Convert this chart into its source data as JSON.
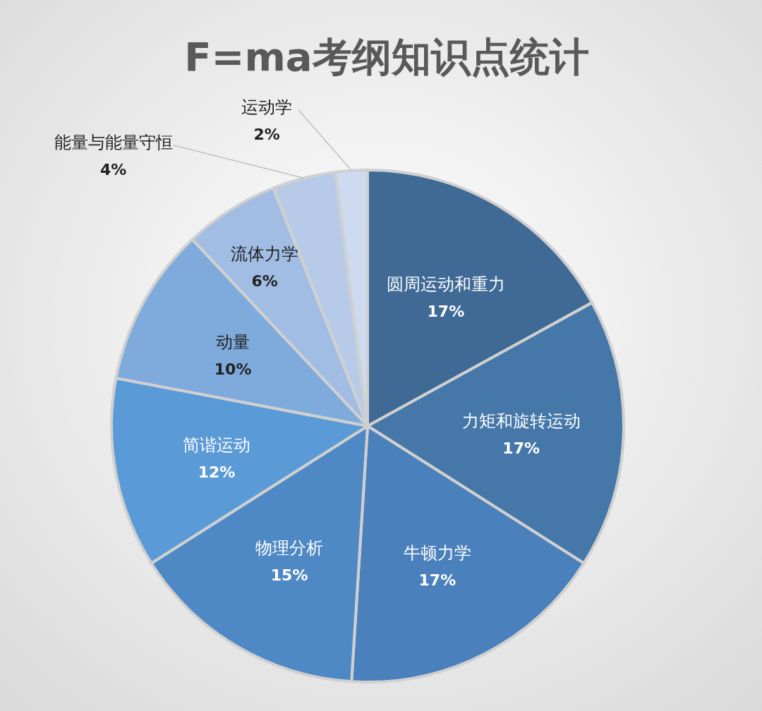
{
  "chart_data": {
    "type": "pie",
    "title": "F=ma考纲知识点统计",
    "categories": [
      "圆周运动和重力",
      "力矩和旋转运动",
      "牛顿力学",
      "物理分析",
      "简谐运动",
      "动量",
      "流体力学",
      "能量与能量守恒",
      "运动学"
    ],
    "values": [
      17,
      17,
      17,
      15,
      12,
      10,
      6,
      4,
      2
    ],
    "value_labels": [
      "17%",
      "17%",
      "17%",
      "15%",
      "12%",
      "10%",
      "6%",
      "4%",
      "2%"
    ],
    "colors": [
      "#3e6a95",
      "#4577a9",
      "#4a80bb",
      "#4f89c5",
      "#5a9ad6",
      "#7eabdc",
      "#a1bde4",
      "#b7cbe9",
      "#cddaef"
    ]
  }
}
